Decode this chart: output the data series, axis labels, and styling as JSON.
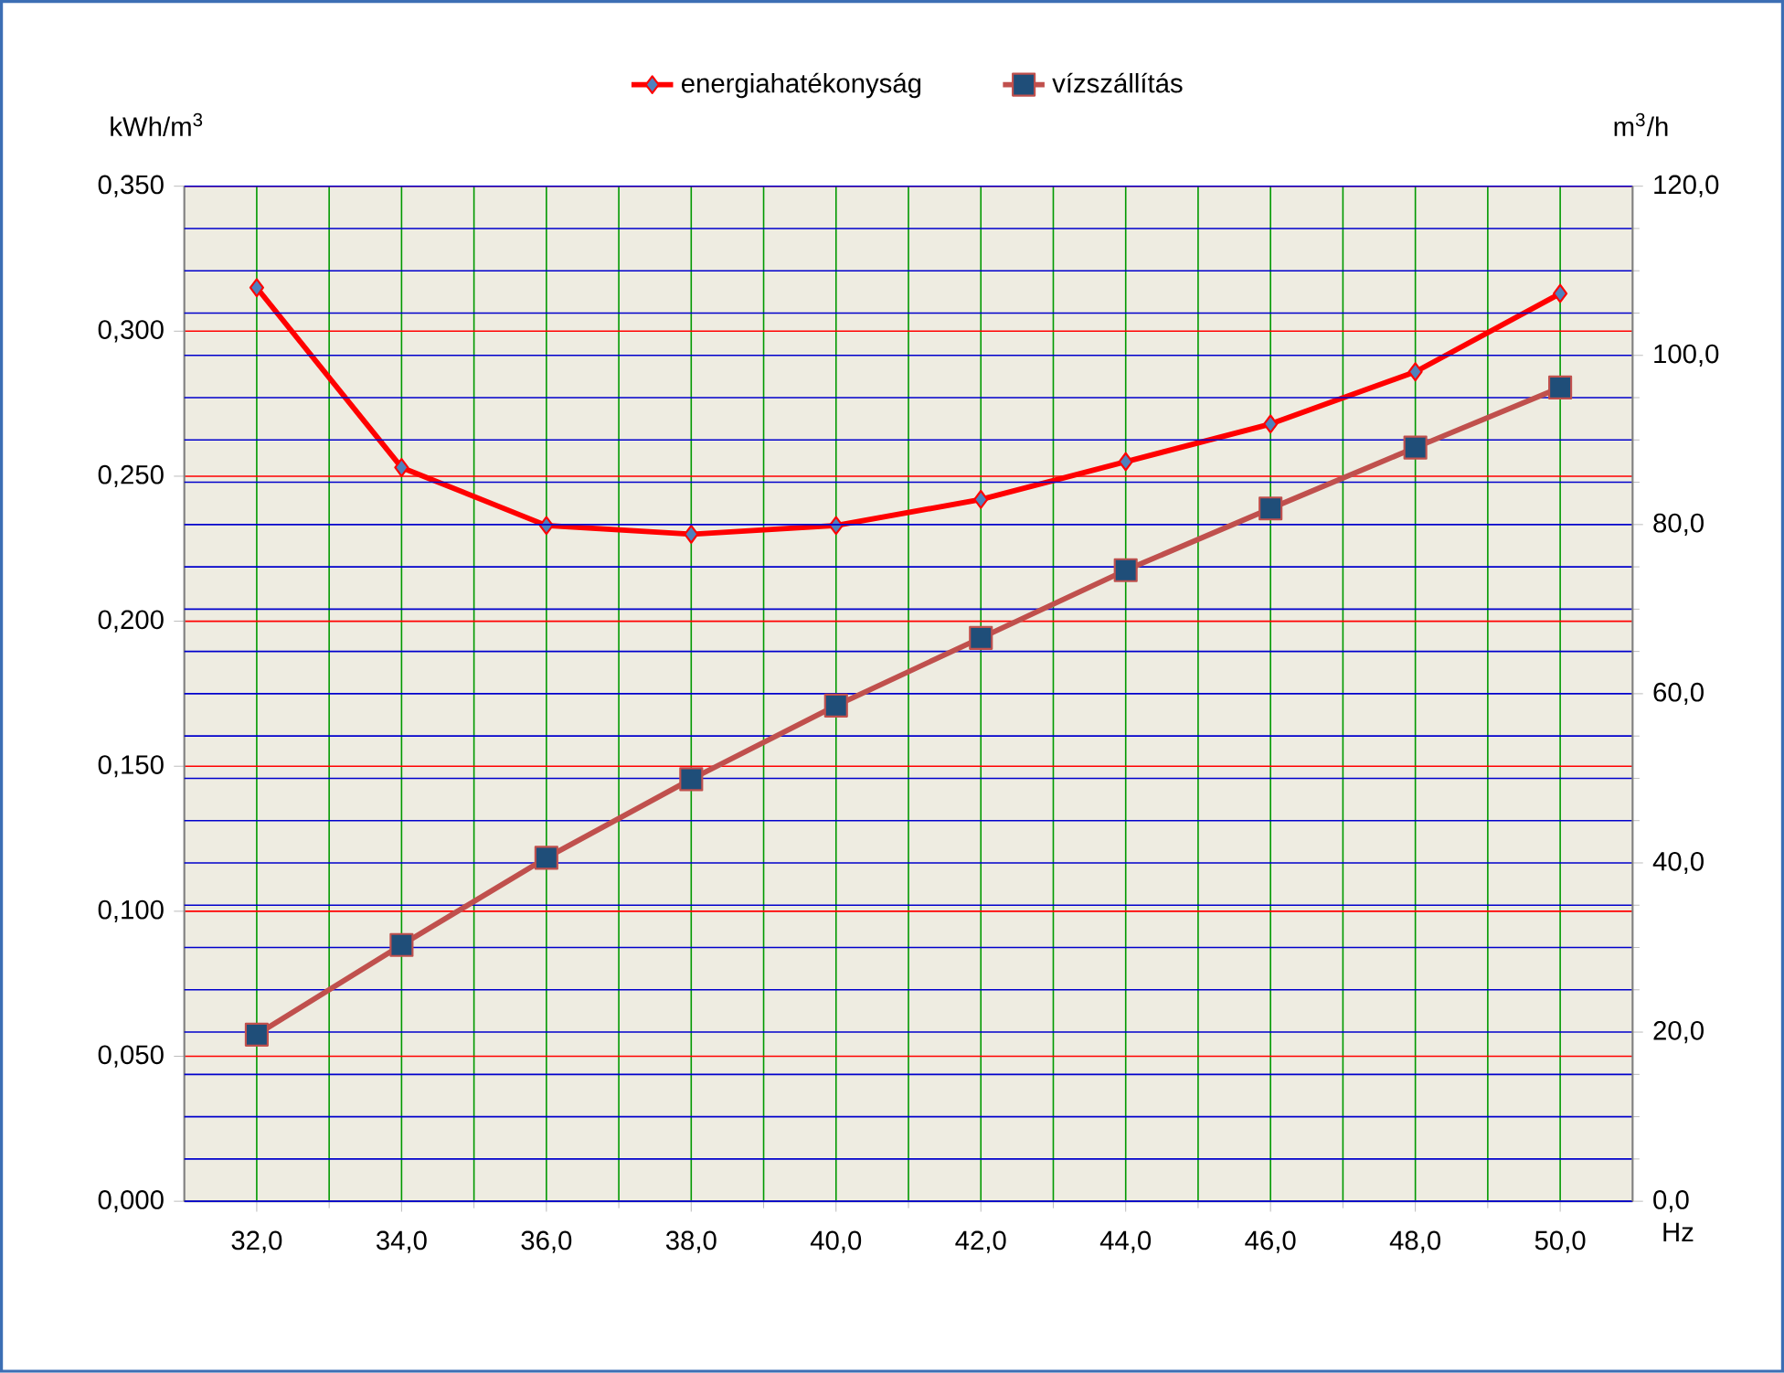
{
  "chart_data": {
    "type": "line",
    "xlabel": "Hz",
    "ylabel": "kWh/m$^{3}$",
    "y2label": "m$^{3}$/h",
    "x": [
      32,
      34,
      36,
      38,
      40,
      42,
      44,
      46,
      48,
      50
    ],
    "series": [
      {
        "name": "energiahatékonyság",
        "color": "#ff0000",
        "marker": "diamond",
        "values": [
          0.315,
          0.253,
          0.233,
          0.23,
          0.233,
          0.242,
          0.255,
          0.268,
          0.286,
          0.313
        ]
      },
      {
        "name": "vízszállítás",
        "color": "#c0504d",
        "marker": "square",
        "axis": "y2",
        "values": [
          19.7,
          30.3,
          40.6,
          49.9,
          58.6,
          66.6,
          74.6,
          81.9,
          89.1,
          96.2
        ]
      }
    ],
    "xlim": [
      31,
      51
    ],
    "xticks": [
      {
        "value": 32,
        "label": "32,0"
      },
      {
        "value": 34,
        "label": "34,0"
      },
      {
        "value": 36,
        "label": "36,0"
      },
      {
        "value": 38,
        "label": "38,0"
      },
      {
        "value": 40,
        "label": "40,0"
      },
      {
        "value": 42,
        "label": "42,0"
      },
      {
        "value": 44,
        "label": "44,0"
      },
      {
        "value": 46,
        "label": "46,0"
      },
      {
        "value": 48,
        "label": "48,0"
      },
      {
        "value": 50,
        "label": "50,0"
      }
    ],
    "ylim": [
      0,
      0.35
    ],
    "yticks": [
      {
        "value": 0,
        "label": "0,000"
      },
      {
        "value": 0.05,
        "label": "0,050"
      },
      {
        "value": 0.1,
        "label": "0,100"
      },
      {
        "value": 0.15,
        "label": "0,150"
      },
      {
        "value": 0.2,
        "label": "0,200"
      },
      {
        "value": 0.25,
        "label": "0,250"
      },
      {
        "value": 0.3,
        "label": "0,300"
      },
      {
        "value": 0.35,
        "label": "0,350"
      }
    ],
    "y2lim": [
      0,
      120
    ],
    "y2ticks": [
      {
        "value": 0,
        "label": "0,0"
      },
      {
        "value": 20,
        "label": "20,0"
      },
      {
        "value": 40,
        "label": "40,0"
      },
      {
        "value": 60,
        "label": "60,0"
      },
      {
        "value": 80,
        "label": "80,0"
      },
      {
        "value": 100,
        "label": "100,0"
      },
      {
        "value": 120,
        "label": "120,0"
      }
    ],
    "grid": true,
    "legend": "top",
    "line_style": "solid"
  }
}
